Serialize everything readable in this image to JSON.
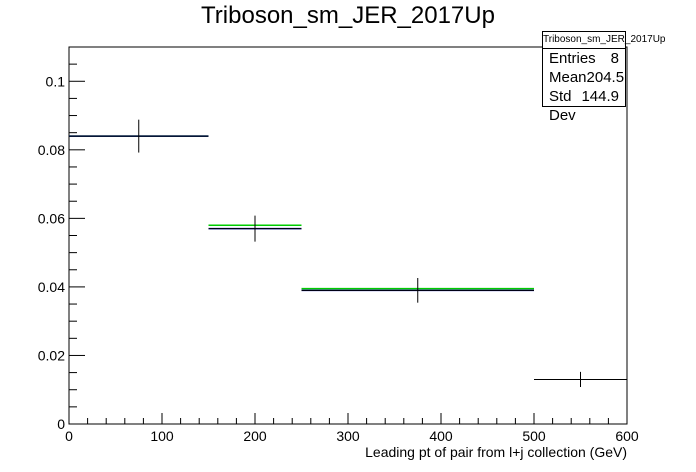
{
  "chart_data": {
    "type": "histogram",
    "title": "Triboson_sm_JER_2017Up",
    "xlabel": "Leading pt of pair from l+j collection (GeV)",
    "ylabel": "",
    "xlim": [
      0,
      600
    ],
    "ylim": [
      0,
      0.11
    ],
    "x_ticks": [
      0,
      100,
      200,
      300,
      400,
      500,
      600
    ],
    "y_ticks": [
      0,
      0.02,
      0.04,
      0.06,
      0.08,
      0.1
    ],
    "x_tick_labels": [
      "0",
      "100",
      "200",
      "300",
      "400",
      "500",
      "600"
    ],
    "y_tick_labels": [
      "0",
      "0.02",
      "0.04",
      "0.06",
      "0.08",
      "0.1"
    ],
    "bins": [
      {
        "low": 0,
        "high": 150,
        "center": 75,
        "value": 0.084,
        "error": 0.0048
      },
      {
        "low": 150,
        "high": 250,
        "center": 200,
        "value": 0.057,
        "error": 0.0038
      },
      {
        "low": 250,
        "high": 500,
        "center": 375,
        "value": 0.039,
        "error": 0.0036
      },
      {
        "low": 500,
        "high": 600,
        "center": 550,
        "value": 0.013,
        "error": 0.0022
      }
    ],
    "series": [
      {
        "color": "#00cc00",
        "values": [
          0.084,
          0.058,
          0.0395
        ]
      },
      {
        "color": "#0000aa",
        "values": [
          0.084,
          0.057,
          0.039
        ]
      }
    ],
    "stats": {
      "name": "Triboson_sm_JER_2017Up",
      "entries_label": "Entries",
      "entries": "8",
      "mean_label": "Mean",
      "mean": "204.5",
      "stddev_label": "Std Dev",
      "stddev": "144.9"
    }
  }
}
